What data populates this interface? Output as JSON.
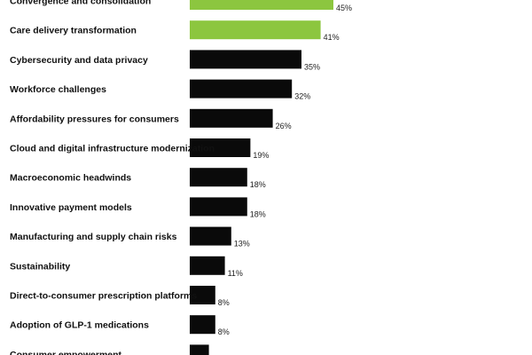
{
  "chart_data": {
    "type": "bar",
    "orientation": "horizontal",
    "categories": [
      "Convergence and consolidation",
      "Care delivery transformation",
      "Cybersecurity and data privacy",
      "Workforce challenges",
      "Affordability pressures for consumers",
      "Cloud and digital infrastructure modernization",
      "Macroeconomic headwinds",
      "Innovative payment models",
      "Manufacturing and supply chain risks",
      "Sustainability",
      "Direct-to-consumer prescription platforms",
      "Adoption of GLP-1 medications",
      "Consumer empowerment"
    ],
    "values": [
      45,
      41,
      35,
      32,
      26,
      19,
      18,
      18,
      13,
      11,
      8,
      8,
      6
    ],
    "value_labels": [
      "45%",
      "41%",
      "35%",
      "32%",
      "26%",
      "19%",
      "18%",
      "18%",
      "13%",
      "11%",
      "8%",
      "8%",
      ""
    ],
    "highlighted": [
      true,
      true,
      false,
      false,
      false,
      false,
      false,
      false,
      false,
      false,
      false,
      false,
      false
    ],
    "xlim": [
      0,
      50
    ],
    "grid": false,
    "title": "",
    "xlabel": "",
    "ylabel": ""
  },
  "colors": {
    "highlight": "#8cc63f",
    "default": "#0a0a0a",
    "background": "#ffffff"
  }
}
